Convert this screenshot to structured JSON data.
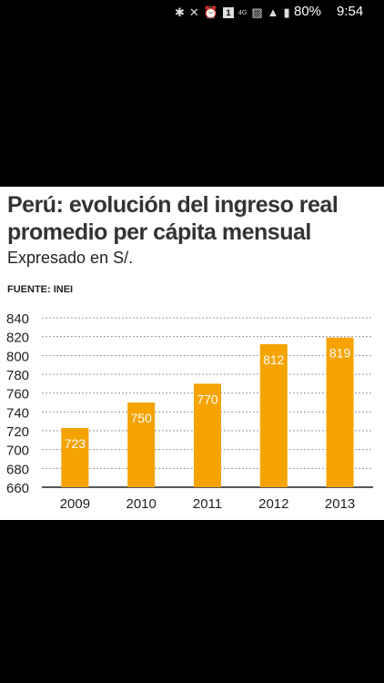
{
  "status_bar": {
    "battery": "80%",
    "time": "9:54",
    "icons": [
      "bluetooth-icon",
      "mute-icon",
      "alarm-icon",
      "notification-1-icon",
      "4g-icon",
      "image-icon",
      "signal-icon",
      "battery-icon"
    ],
    "notif_digit": "1",
    "network_label": "4G"
  },
  "article": {
    "title": "Perú: evolución del ingreso real promedio per cápita mensual",
    "subtitle": "Expresado en S/.",
    "source": "FUENTE: INEI"
  },
  "chart_data": {
    "type": "bar",
    "categories": [
      "2009",
      "2010",
      "2011",
      "2012",
      "2013"
    ],
    "values": [
      723,
      750,
      770,
      812,
      819
    ],
    "ylim": [
      660,
      840
    ],
    "yticks": [
      660,
      680,
      700,
      720,
      740,
      760,
      780,
      800,
      820,
      840
    ],
    "xlabel": "",
    "ylabel": "",
    "grid": "dotted horizontal",
    "color": "#f5a300"
  }
}
